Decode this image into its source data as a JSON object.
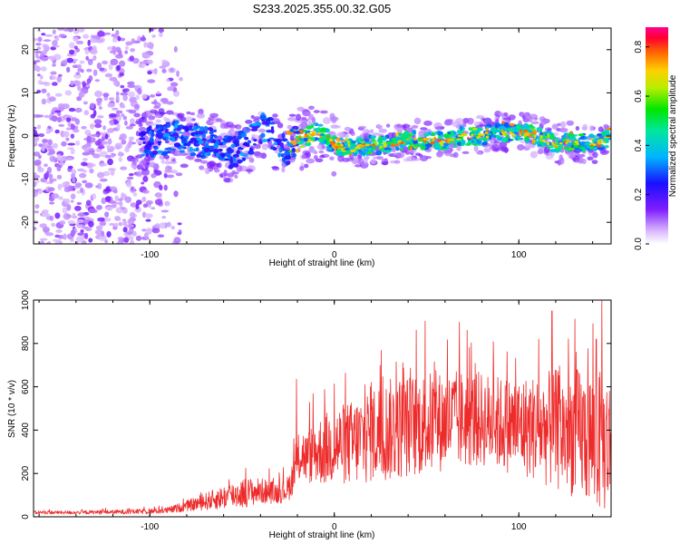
{
  "title": "S233.2025.355.00.32.G05",
  "chart_data": [
    {
      "type": "heatmap",
      "title": "S233.2025.355.00.32.G05",
      "xlabel": "Height of straight line (km)",
      "ylabel": "Frequency (Hz)",
      "xlim": [
        -163,
        150
      ],
      "ylim": [
        -25,
        25
      ],
      "x_ticks": [
        -100,
        0,
        100
      ],
      "x_tick_labels": [
        "-100",
        "0",
        "100"
      ],
      "y_ticks": [
        -20,
        -10,
        0,
        10,
        20
      ],
      "y_tick_labels": [
        "-20",
        "-10",
        "0",
        "10",
        "20"
      ],
      "ridge": {
        "x": [
          -105,
          -95,
          -85,
          -75,
          -65,
          -55,
          -45,
          -40,
          -35,
          -30,
          -25,
          -20,
          -15,
          -10,
          -5,
          0,
          10,
          20,
          30,
          40,
          50,
          60,
          70,
          80,
          90,
          100,
          110,
          120,
          130,
          140,
          150
        ],
        "frequency": [
          -2,
          -1,
          0,
          -1,
          -2,
          -4,
          -1,
          2,
          1,
          -2,
          -3,
          -1,
          0,
          1,
          0,
          -2,
          -3,
          -2,
          -2,
          -1,
          -1,
          -1,
          0,
          0,
          1,
          1,
          0,
          -2,
          -1,
          -2,
          0
        ]
      },
      "colorbar": {
        "label": "Normalized spectral amplitude",
        "range": [
          0.0,
          0.88
        ],
        "ticks": [
          0.0,
          0.2,
          0.4,
          0.6,
          0.8
        ],
        "tick_labels": [
          "0.0",
          "0.2",
          "0.4",
          "0.6",
          "0.8"
        ]
      }
    },
    {
      "type": "line",
      "xlabel": "Height of straight line (km)",
      "ylabel": "SNR (10 * v/v)",
      "xlim": [
        -163,
        150
      ],
      "ylim": [
        0,
        1000
      ],
      "x_ticks": [
        -100,
        0,
        100
      ],
      "x_tick_labels": [
        "-100",
        "0",
        "100"
      ],
      "y_ticks": [
        0,
        200,
        400,
        600,
        800,
        1000
      ],
      "y_tick_labels": [
        "0",
        "200",
        "400",
        "600",
        "800",
        "1000"
      ],
      "color": "#ee2b2b",
      "envelope": {
        "x": [
          -163,
          -140,
          -120,
          -100,
          -90,
          -80,
          -70,
          -60,
          -50,
          -40,
          -30,
          -25,
          -20,
          -18,
          -15,
          -10,
          -5,
          0,
          10,
          20,
          30,
          40,
          50,
          60,
          70,
          80,
          90,
          100,
          110,
          120,
          130,
          140,
          145,
          150
        ],
        "mean": [
          20,
          20,
          22,
          25,
          30,
          50,
          70,
          90,
          110,
          120,
          110,
          130,
          240,
          300,
          270,
          300,
          310,
          330,
          340,
          380,
          400,
          420,
          430,
          440,
          450,
          450,
          430,
          420,
          410,
          400,
          390,
          360,
          340,
          330
        ],
        "amplitude": [
          8,
          8,
          10,
          12,
          15,
          25,
          40,
          55,
          70,
          60,
          50,
          60,
          100,
          130,
          120,
          150,
          170,
          180,
          200,
          230,
          240,
          240,
          240,
          230,
          230,
          220,
          220,
          230,
          250,
          280,
          300,
          320,
          330,
          320
        ]
      },
      "spikes": [
        {
          "x": -20.5,
          "value": 635
        },
        {
          "x": 145,
          "value": 1000
        },
        {
          "x": 142,
          "value": 820
        },
        {
          "x": 118,
          "value": 950
        },
        {
          "x": 20,
          "value": 620
        },
        {
          "x": 65,
          "value": 620
        },
        {
          "x": 131,
          "value": 760
        }
      ]
    }
  ]
}
